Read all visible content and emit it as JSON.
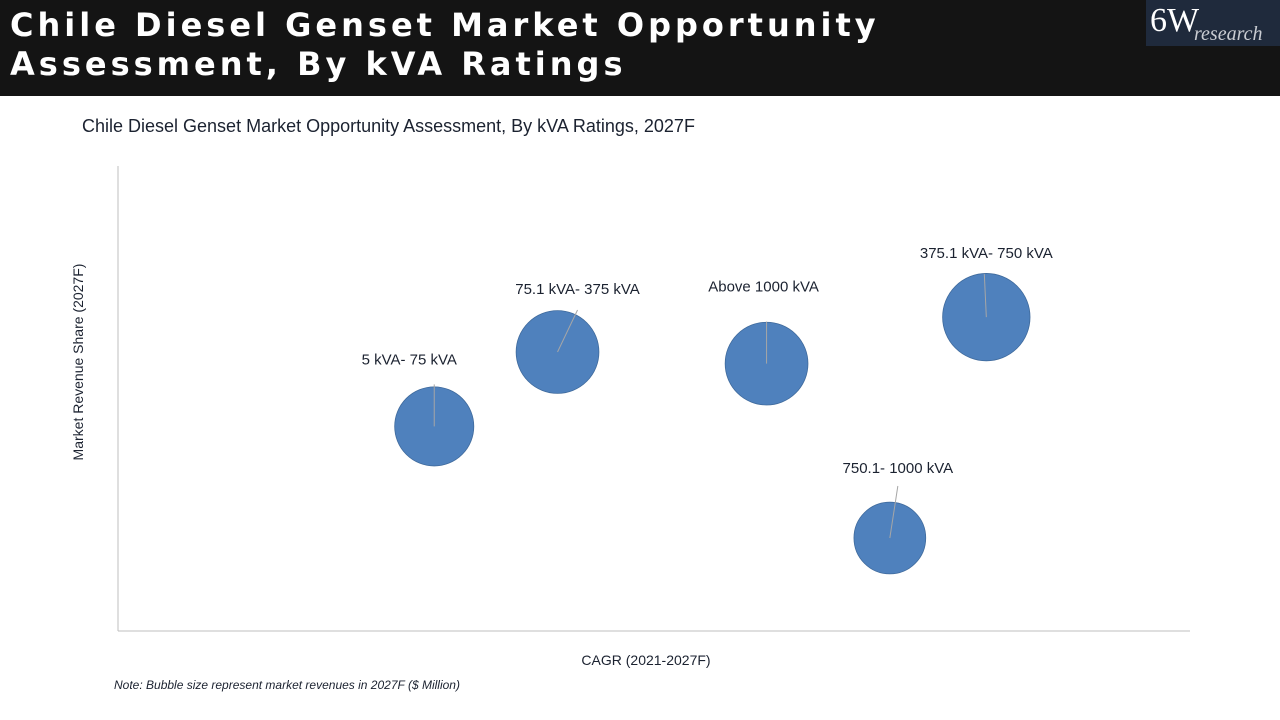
{
  "header": {
    "title": "Chile Diesel Genset Market Opportunity Assessment, By kVA Ratings"
  },
  "logo": {
    "mark": "6W",
    "word": "research"
  },
  "chart_data": {
    "type": "scatter",
    "subtype": "bubble",
    "title": "Chile Diesel Genset Market Opportunity Assessment, By kVA Ratings, 2027F",
    "xlabel": "CAGR (2021-2027F)",
    "ylabel": "Market Revenue Share (2027F)",
    "xlim": [
      0,
      10
    ],
    "ylim": [
      0,
      10
    ],
    "grid": false,
    "bubble_color": "#4f81bd",
    "points": [
      {
        "label": "5 kVA- 75 kVA",
        "x": 2.95,
        "y": 4.4,
        "size": 0.86
      },
      {
        "label": "75.1 kVA- 375 kVA",
        "x": 4.1,
        "y": 6.0,
        "size": 0.9
      },
      {
        "label": "Above 1000 kVA",
        "x": 6.05,
        "y": 5.75,
        "size": 0.9
      },
      {
        "label": "375.1 kVA- 750 kVA",
        "x": 8.1,
        "y": 6.75,
        "size": 0.95
      },
      {
        "label": "750.1- 1000 kVA",
        "x": 7.2,
        "y": 2.0,
        "size": 0.78
      }
    ]
  },
  "note": "Note: Bubble size represent market revenues in 2027F ($ Million)"
}
